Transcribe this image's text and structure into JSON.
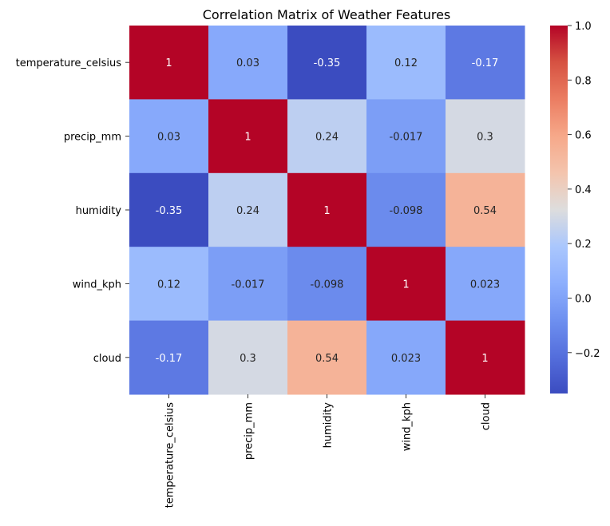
{
  "chart_data": {
    "type": "heatmap",
    "title": "Correlation Matrix of Weather Features",
    "xlabel": "",
    "ylabel": "",
    "row_labels": [
      "temperature_celsius",
      "precip_mm",
      "humidity",
      "wind_kph",
      "cloud"
    ],
    "col_labels": [
      "temperature_celsius",
      "precip_mm",
      "humidity",
      "wind_kph",
      "cloud"
    ],
    "values": [
      [
        1,
        0.03,
        -0.35,
        0.12,
        -0.17
      ],
      [
        0.03,
        1,
        0.24,
        -0.017,
        0.3
      ],
      [
        -0.35,
        0.24,
        1,
        -0.098,
        0.54
      ],
      [
        0.12,
        -0.017,
        -0.098,
        1,
        0.023
      ],
      [
        -0.17,
        0.3,
        0.54,
        0.023,
        1
      ]
    ],
    "colormap": "coolwarm",
    "color_range": [
      -0.35,
      1
    ],
    "colorbar_ticks": [
      1.0,
      0.8,
      0.6,
      0.4,
      0.2,
      0.0,
      -0.2
    ],
    "colorbar_tick_labels": [
      "1.0",
      "0.8",
      "0.6",
      "0.4",
      "0.2",
      "0.0",
      "−0.2"
    ],
    "annotations": true,
    "grid": false,
    "legend": "colorbar-right"
  }
}
